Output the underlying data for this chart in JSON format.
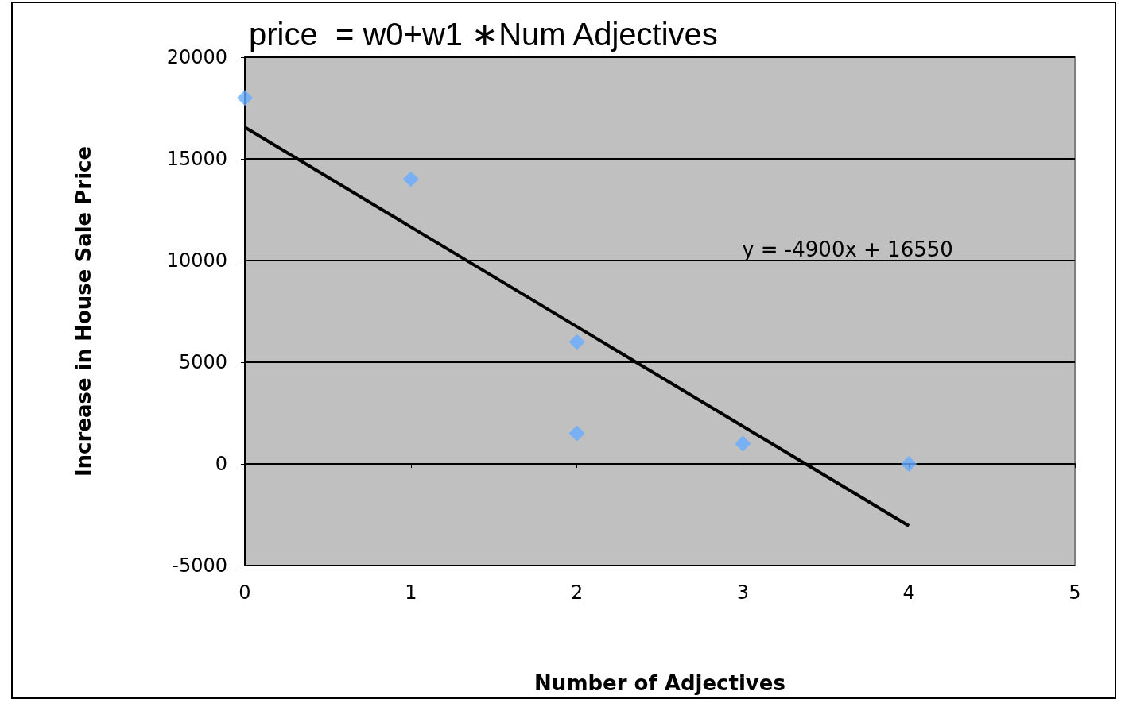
{
  "chart_data": {
    "type": "scatter",
    "title": "price  = w0+w1 ∗Num Adjectives",
    "xlabel": "Number of Adjectives",
    "ylabel": "Increase in House Sale Price",
    "series": [
      {
        "color": "#66aaff",
        "marker": "diamond",
        "x": [
          0,
          1,
          2,
          2,
          3,
          4
        ],
        "values": [
          18000,
          14000,
          6000,
          1500,
          1000,
          0
        ]
      },
      {
        "type": "line",
        "color": "#000000",
        "marker": "none",
        "x": [
          0,
          4
        ],
        "values": [
          16550,
          -3050
        ]
      }
    ],
    "annotations": [
      "y = -4900x + 16550"
    ],
    "xlim": [
      0,
      5
    ],
    "xticks": [
      0,
      1,
      2,
      3,
      4,
      5
    ],
    "ylim": [
      -5000,
      20000
    ],
    "yticks": [
      -5000,
      0,
      5000,
      10000,
      15000,
      20000
    ],
    "grid": "y"
  }
}
